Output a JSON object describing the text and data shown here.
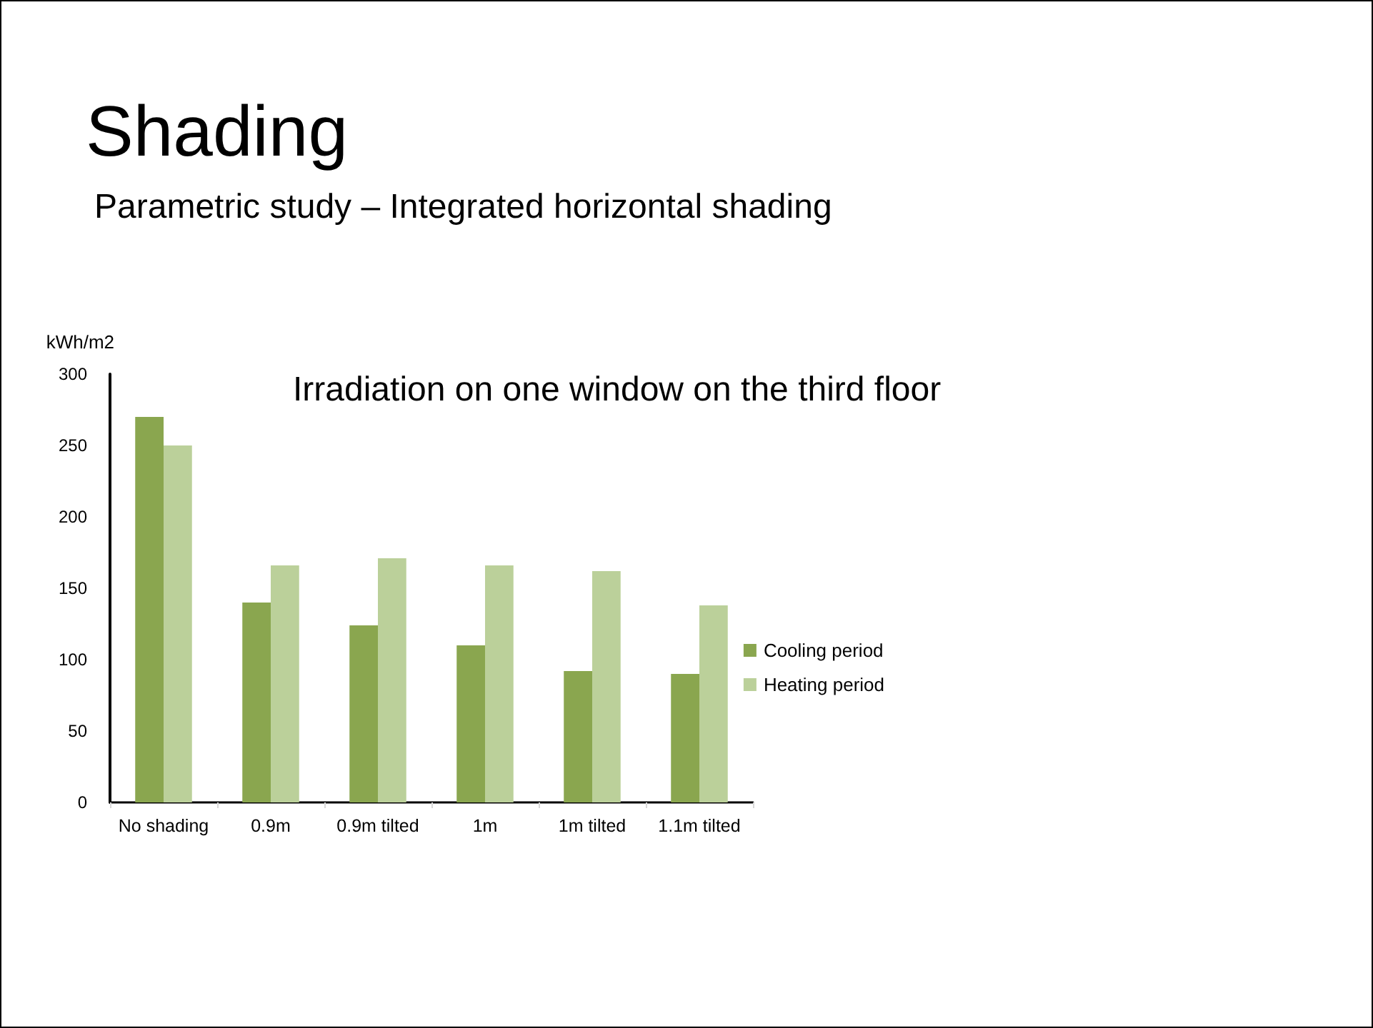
{
  "chart_data": {
    "type": "bar",
    "title": "Shading",
    "subtitle": "Parametric study – Integrated horizontal shading",
    "annotations": [
      "Irradiation on one window on the third floor"
    ],
    "ylabel": "kWh/m2",
    "categories": [
      "No shading",
      "0.9m",
      "0.9m tilted",
      "1m",
      "1m tilted",
      "1.1m tilted"
    ],
    "series": [
      {
        "name": "Cooling period",
        "color": "#8aa64f",
        "values": [
          270,
          140,
          124,
          110,
          92,
          90
        ]
      },
      {
        "name": "Heating period",
        "color": "#bbd09a",
        "values": [
          250,
          166,
          171,
          166,
          162,
          138
        ]
      }
    ],
    "ylim": [
      0,
      300
    ],
    "yticks": [
      0,
      50,
      100,
      150,
      200,
      250,
      300
    ],
    "legend": "right"
  }
}
